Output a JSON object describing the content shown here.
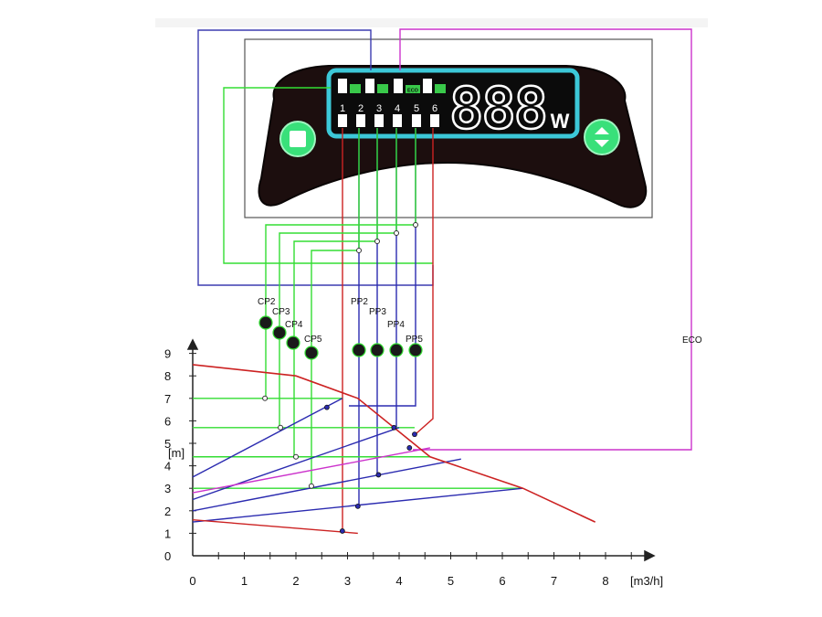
{
  "display": {
    "digits": "888",
    "unit": "W",
    "segment_numbers": [
      "1",
      "2",
      "3",
      "4",
      "5",
      "6"
    ],
    "eco_badge_text": "ECO"
  },
  "labels": {
    "cp": [
      "CP2",
      "CP3",
      "CP4",
      "CP5"
    ],
    "pp": [
      "PP2",
      "PP3",
      "PP4",
      "PP5"
    ],
    "eco": "ECO"
  },
  "axes": {
    "y_unit": "[m]",
    "x_unit": "[m3/h]",
    "y_ticks": [
      "0",
      "1",
      "2",
      "3",
      "4",
      "5",
      "6",
      "7",
      "8",
      "9"
    ],
    "x_ticks": [
      "0",
      "1",
      "2",
      "3",
      "4",
      "5",
      "6",
      "7",
      "8"
    ]
  },
  "colors": {
    "cp": "#33dd33",
    "pp": "#2b2bb0",
    "eco": "#cc33cc",
    "max": "#cc2222",
    "cyan": "#3cc8d8",
    "panel": "#1c0e0e"
  },
  "curves": {
    "max": [
      [
        0,
        8.5
      ],
      [
        2,
        8.0
      ],
      [
        3.2,
        7.0
      ],
      [
        4.6,
        4.4
      ],
      [
        6.4,
        3.0
      ],
      [
        7.8,
        1.5
      ]
    ],
    "min": [
      [
        0,
        1.6
      ],
      [
        3.2,
        1.0
      ]
    ],
    "pp_lines": [
      {
        "from": [
          0,
          3.5
        ],
        "to": [
          2.9,
          7.0
        ]
      },
      {
        "from": [
          0,
          2.5
        ],
        "to": [
          4.0,
          5.7
        ]
      },
      {
        "from": [
          0,
          2.0
        ],
        "to": [
          5.2,
          4.3
        ]
      },
      {
        "from": [
          0,
          1.5
        ],
        "to": [
          6.4,
          3.0
        ]
      }
    ],
    "eco_line": {
      "from": [
        0,
        2.8
      ],
      "to": [
        4.6,
        4.8
      ]
    },
    "cp_levels": [
      7.0,
      5.7,
      4.4,
      3.0
    ],
    "cp_points": [
      [
        1.4,
        7.0
      ],
      [
        1.7,
        5.7
      ],
      [
        2.0,
        4.4
      ],
      [
        2.3,
        3.1
      ]
    ],
    "pp_points": [
      [
        2.6,
        6.6
      ],
      [
        3.6,
        3.6
      ],
      [
        3.9,
        5.7
      ],
      [
        4.3,
        5.4
      ],
      [
        3.2,
        2.2
      ],
      [
        2.9,
        1.1
      ],
      [
        4.2,
        4.8
      ]
    ]
  }
}
